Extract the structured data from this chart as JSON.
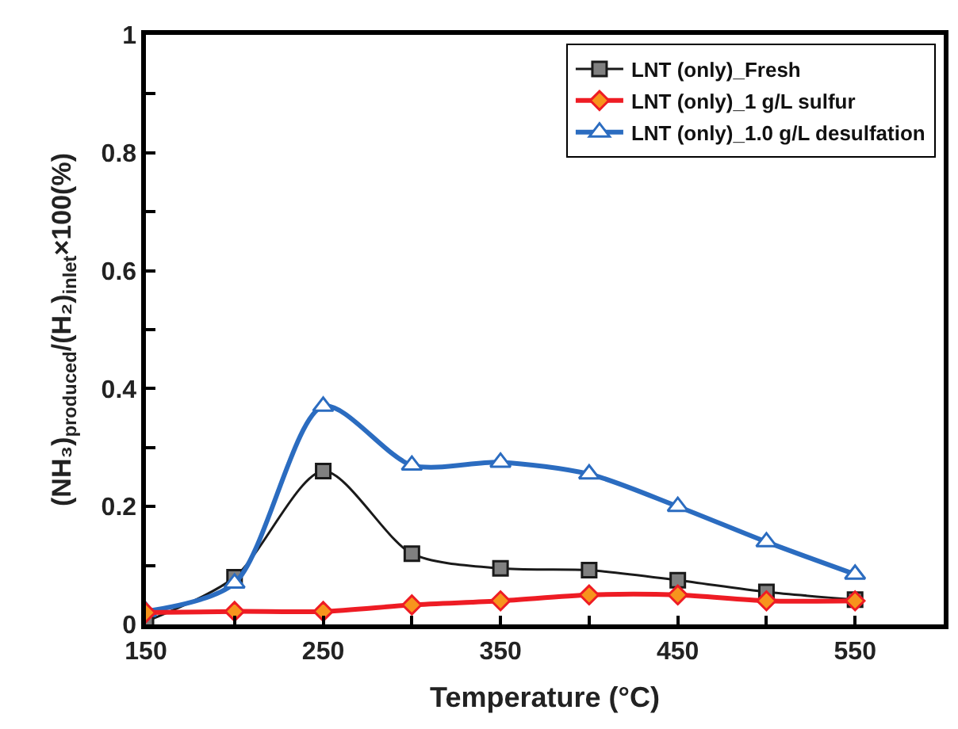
{
  "chart_data": {
    "type": "line",
    "xlabel": "Temperature (°C)",
    "ylabel": "(NH₃)$_{produced}$/(H₂)$_{inlet}$×100(%)",
    "x": [
      150,
      200,
      250,
      300,
      350,
      400,
      450,
      500,
      550
    ],
    "series": [
      {
        "name": "LNT (only)_Fresh",
        "color": "#1a1a1a",
        "marker": "square",
        "values": [
          0.005,
          0.08,
          0.26,
          0.12,
          0.095,
          0.092,
          0.075,
          0.055,
          0.042
        ]
      },
      {
        "name": "LNT (only)_1 g/L sulfur",
        "color": "#ee1c24",
        "marker": "diamond",
        "values": [
          0.02,
          0.022,
          0.022,
          0.033,
          0.04,
          0.05,
          0.05,
          0.04,
          0.04
        ]
      },
      {
        "name": "LNT (only)_1.0 g/L desulfation",
        "color": "#2b6cc0",
        "marker": "triangle",
        "values": [
          0.022,
          0.07,
          0.37,
          0.27,
          0.275,
          0.255,
          0.2,
          0.14,
          0.085
        ]
      }
    ],
    "xlim": [
      150,
      600
    ],
    "xticks": [
      150,
      {
        "value": 200,
        "label": null
      },
      250,
      {
        "value": 300,
        "label": null
      },
      350,
      {
        "value": 400,
        "label": null
      },
      450,
      {
        "value": 500,
        "label": null
      },
      550
    ],
    "ylim": [
      0,
      1
    ],
    "yticks": [
      0,
      {
        "value": 0.1,
        "label": null
      },
      0.2,
      {
        "value": 0.3,
        "label": null
      },
      0.4,
      {
        "value": 0.5,
        "label": null
      },
      0.6,
      {
        "value": 0.7,
        "label": null
      },
      0.8,
      {
        "value": 0.9,
        "label": null
      },
      1
    ],
    "legend": "top right",
    "line_style": "solid"
  }
}
